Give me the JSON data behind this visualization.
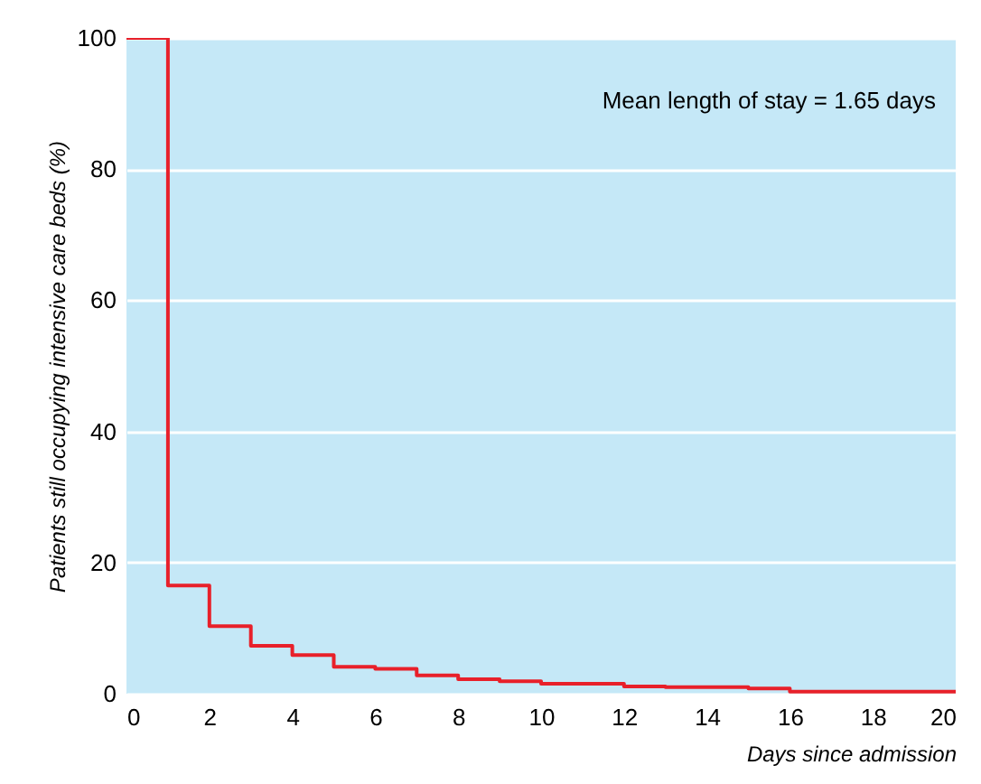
{
  "chart_data": {
    "type": "step",
    "xlabel": "Days since admission",
    "ylabel": "Patients still occupying intensive care beds (%)",
    "x": [
      0,
      1,
      2,
      3,
      4,
      5,
      6,
      7,
      8,
      9,
      10,
      12,
      13,
      15,
      16,
      20
    ],
    "series": [
      {
        "color": "#e8202a",
        "values": [
          100,
          16.5,
          10.3,
          7.3,
          5.9,
          4.1,
          3.8,
          2.8,
          2.2,
          1.9,
          1.5,
          1.1,
          1.0,
          0.8,
          0.3,
          0.3
        ]
      }
    ],
    "xlim": [
      0,
      20
    ],
    "xticks": [
      0,
      2,
      4,
      6,
      8,
      10,
      12,
      14,
      16,
      18,
      20
    ],
    "ylim": [
      0,
      100
    ],
    "yticks": [
      0,
      20,
      40,
      60,
      80,
      100
    ],
    "grid": "y",
    "marker": "none",
    "line_style": "solid",
    "annotations": [
      "Mean length of stay = 1.65 days"
    ]
  }
}
